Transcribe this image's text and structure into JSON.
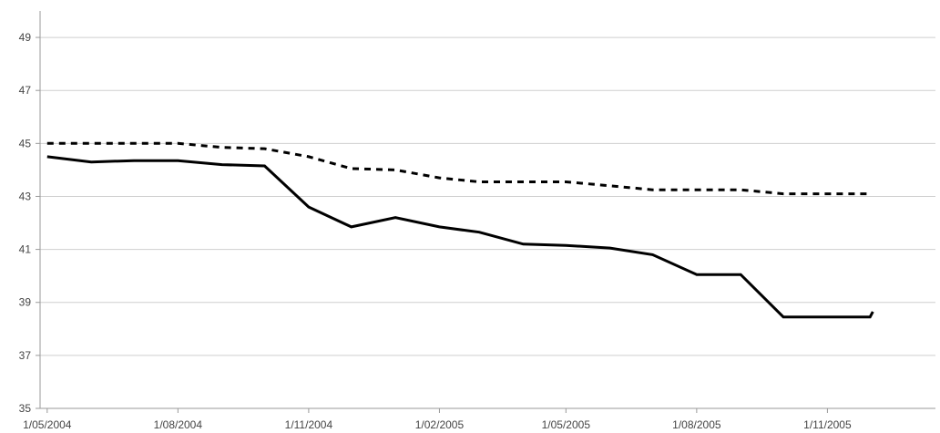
{
  "chart_data": {
    "type": "line",
    "title": "",
    "xlabel": "",
    "ylabel": "",
    "ylim": [
      35,
      50
    ],
    "yticks": [
      35,
      37,
      39,
      41,
      43,
      45,
      47,
      49
    ],
    "ytick_labels": [
      "35",
      "37",
      "39",
      "41",
      "43",
      "45",
      "47",
      "49"
    ],
    "xticks": [
      "2004-05-01",
      "2004-08-01",
      "2004-11-01",
      "2005-02-01",
      "2005-05-01",
      "2005-08-01",
      "2005-11-01"
    ],
    "xtick_labels": [
      "1/05/2004",
      "1/08/2004",
      "1/11/2004",
      "1/02/2005",
      "1/05/2005",
      "1/08/2005",
      "1/11/2005"
    ],
    "xlim": [
      "2004-04-26",
      "2006-01-16"
    ],
    "grid": true,
    "legend": "none",
    "series": [
      {
        "style": "dotted",
        "color": "#000000",
        "x": [
          "2004-05-01",
          "2004-06-01",
          "2004-07-01",
          "2004-08-01",
          "2004-09-01",
          "2004-10-01",
          "2004-11-01",
          "2004-12-01",
          "2005-01-01",
          "2005-02-01",
          "2005-03-01",
          "2005-04-01",
          "2005-05-01",
          "2005-06-01",
          "2005-07-01",
          "2005-08-01",
          "2005-09-01",
          "2005-10-01",
          "2005-11-01",
          "2005-12-01"
        ],
        "values": [
          45.0,
          45.0,
          45.0,
          45.0,
          44.85,
          44.8,
          44.5,
          44.05,
          44.0,
          43.7,
          43.55,
          43.55,
          43.55,
          43.4,
          43.25,
          43.25,
          43.25,
          43.1,
          43.1,
          43.1
        ]
      },
      {
        "style": "solid",
        "color": "#000000",
        "x": [
          "2004-05-01",
          "2004-06-01",
          "2004-07-01",
          "2004-08-01",
          "2004-09-01",
          "2004-10-01",
          "2004-11-01",
          "2004-12-01",
          "2005-01-01",
          "2005-02-01",
          "2005-03-01",
          "2005-04-01",
          "2005-05-01",
          "2005-06-01",
          "2005-07-01",
          "2005-08-01",
          "2005-09-01",
          "2005-10-01",
          "2005-11-01",
          "2005-12-01",
          "2005-12-03"
        ],
        "values": [
          44.5,
          44.3,
          44.35,
          44.35,
          44.2,
          44.15,
          42.6,
          41.85,
          42.2,
          41.85,
          41.65,
          41.2,
          41.15,
          41.05,
          40.8,
          40.05,
          40.05,
          38.45,
          38.45,
          38.45,
          38.65
        ]
      }
    ]
  }
}
